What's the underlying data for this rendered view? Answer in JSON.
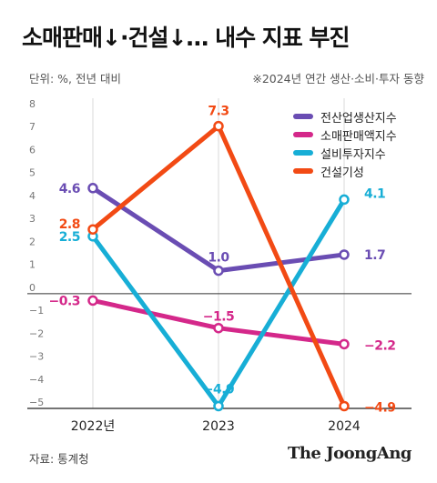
{
  "header": {
    "title": "소매판매↓·건설↓… 내수 지표 부진",
    "unit": "단위: %, 전년 대비",
    "note": "※2024년 연간 생산·소비·투자 동향"
  },
  "footer": {
    "source": "자료: 통계청",
    "brand": "The JoongAng"
  },
  "chart_data": {
    "type": "line",
    "x": [
      "2022년",
      "2023",
      "2024"
    ],
    "ylim": [
      -5,
      8
    ],
    "yticks": [
      "8",
      "7",
      "6",
      "5",
      "4",
      "3",
      "2",
      "1",
      "0",
      "−1",
      "−2",
      "−3",
      "−4",
      "−5"
    ],
    "grid": false,
    "legend_position": "top-right",
    "series": [
      {
        "name": "전산업생산지수",
        "color": "#6a4db3",
        "values": [
          4.6,
          1.0,
          1.7
        ],
        "labels": [
          "4.6",
          "1.0",
          "1.7"
        ]
      },
      {
        "name": "소매판매액지수",
        "color": "#d4288a",
        "values": [
          -0.3,
          -1.5,
          -2.2
        ],
        "labels": [
          "−0.3",
          "−1.5",
          "−2.2"
        ]
      },
      {
        "name": "설비투자지수",
        "color": "#17aed6",
        "values": [
          2.5,
          -4.9,
          4.1
        ],
        "labels": [
          "2.5",
          "−4.9",
          "4.1"
        ]
      },
      {
        "name": "건설기성",
        "color": "#f24a14",
        "values": [
          2.8,
          7.3,
          -4.9
        ],
        "labels": [
          "2.8",
          "7.3",
          "−4.9"
        ]
      }
    ]
  }
}
